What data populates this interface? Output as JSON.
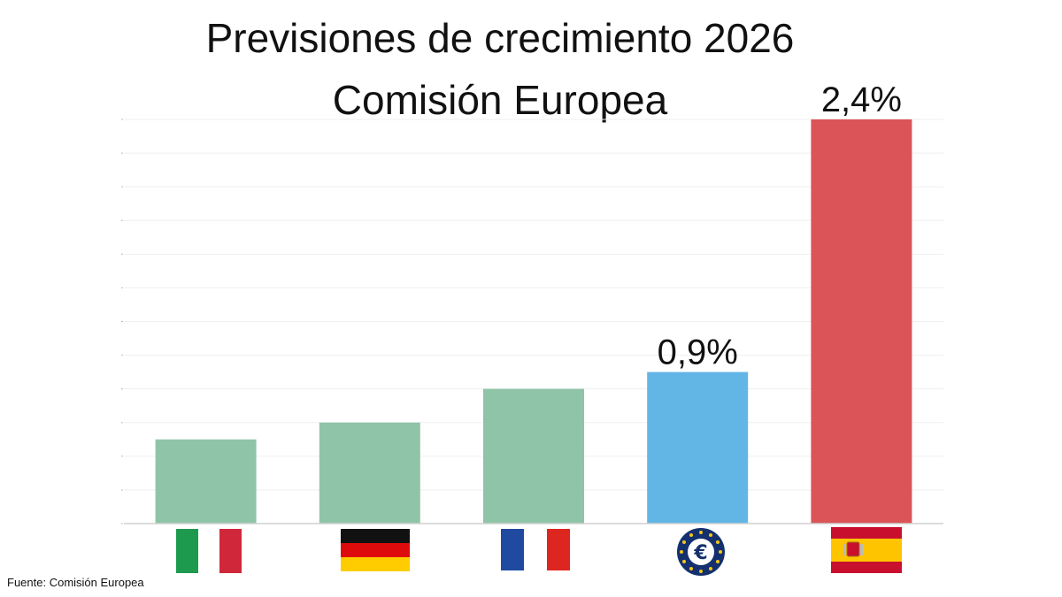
{
  "title_line1": "Previsiones de crecimiento 2026",
  "title_line2": "Comisión Europea",
  "source": "Fuente: Comisión Europea",
  "chart_data": {
    "type": "bar",
    "title": "Previsiones de crecimiento 2026",
    "subtitle": "Comisión Europea",
    "categories": [
      "Italia",
      "Alemania",
      "Francia",
      "Zona euro",
      "España"
    ],
    "category_icons": [
      "italy-flag-icon",
      "germany-flag-icon",
      "france-flag-icon",
      "euro-icon",
      "spain-flag-icon"
    ],
    "values": [
      0.5,
      0.6,
      0.8,
      0.9,
      2.4
    ],
    "data_labels": [
      "",
      "",
      "",
      "0,9%",
      "2,4%"
    ],
    "colors": [
      "#90c4a8",
      "#90c4a8",
      "#90c4a8",
      "#62b6e6",
      "#db5457"
    ],
    "ylim": [
      0,
      2.4
    ],
    "grid": true,
    "xlabel": "",
    "ylabel": ""
  }
}
